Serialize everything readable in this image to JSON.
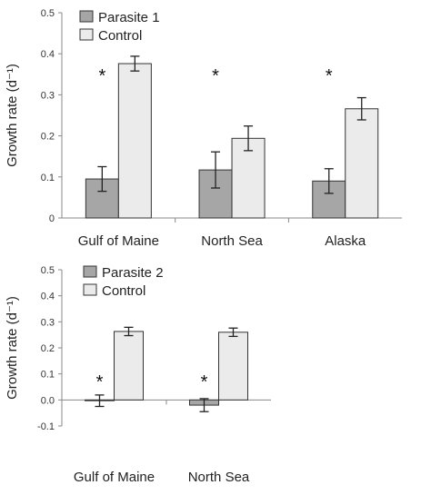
{
  "colors": {
    "parasite": "#a6a6a6",
    "control": "#ebebeb",
    "bar_stroke": "#333333",
    "error_bar": "#222222"
  },
  "chart_data": [
    {
      "type": "bar",
      "categories": [
        "Gulf of Maine",
        "North Sea",
        "Alaska"
      ],
      "ylabel": "Growth rate (d⁻¹)",
      "ylim": [
        0,
        0.5
      ],
      "yticks": [
        "0",
        "0.1",
        "0.2",
        "0.3",
        "0.4",
        "0.5"
      ],
      "legend_position": "top-left",
      "series": [
        {
          "name": "Parasite 1",
          "values": [
            0.095,
            0.117,
            0.09
          ],
          "errors": [
            0.03,
            0.044,
            0.03
          ]
        },
        {
          "name": "Control",
          "values": [
            0.376,
            0.194,
            0.266
          ],
          "errors": [
            0.018,
            0.03,
            0.027
          ]
        }
      ],
      "annotations": [
        "*",
        "*",
        "*"
      ]
    },
    {
      "type": "bar",
      "categories": [
        "Gulf of Maine",
        "North Sea"
      ],
      "ylabel": "Growth rate (d⁻¹)",
      "ylim": [
        -0.1,
        0.5
      ],
      "yticks": [
        "-0.1",
        "0.0",
        "0.1",
        "0.2",
        "0.3",
        "0.4",
        "0.5"
      ],
      "legend_position": "top-left",
      "series": [
        {
          "name": "Parasite 2",
          "values": [
            -0.003,
            -0.02
          ],
          "errors": [
            0.022,
            0.025
          ]
        },
        {
          "name": "Control",
          "values": [
            0.263,
            0.26
          ],
          "errors": [
            0.016,
            0.016
          ]
        }
      ],
      "annotations": [
        "*",
        "*"
      ]
    }
  ]
}
